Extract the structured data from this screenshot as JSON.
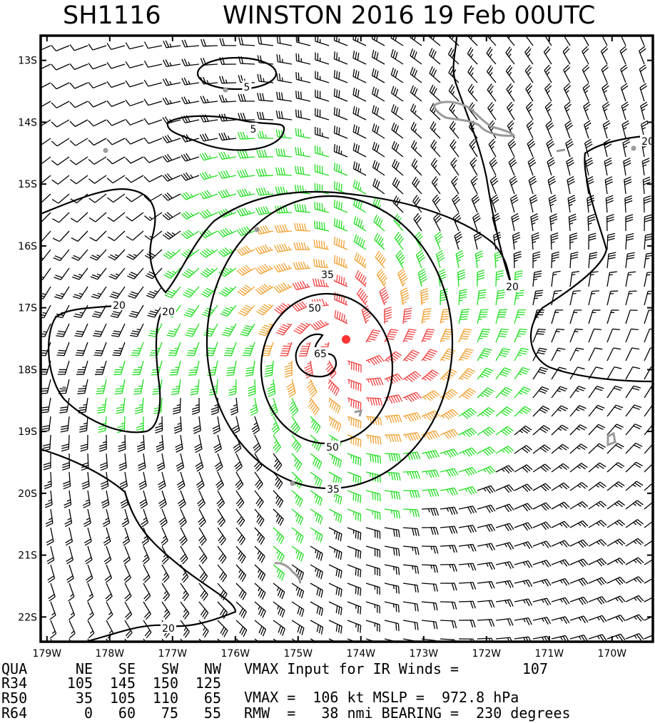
{
  "title": {
    "storm_id": "SH1116",
    "name_time": "WINSTON 2016 19 Feb 00UTC"
  },
  "chart_data": {
    "type": "wind-barb map",
    "x_tick_labels": [
      "179W",
      "178W",
      "177W",
      "176W",
      "175W",
      "174W",
      "173W",
      "172W",
      "171W",
      "170W"
    ],
    "y_tick_labels": [
      "13S",
      "14S",
      "15S",
      "16S",
      "17S",
      "18S",
      "19S",
      "20S",
      "21S",
      "22S"
    ],
    "xlim": [
      -179.1,
      -169.35
    ],
    "ylim": [
      -22.4,
      -12.6
    ],
    "center": {
      "lon": -174.2,
      "lat": -17.4
    },
    "contour_labels": [
      "5",
      "5",
      "20",
      "20",
      "20",
      "20",
      "20",
      "35",
      "35",
      "50",
      "50",
      "65"
    ],
    "barb_colors": {
      "lt34": "#000000",
      "34_49": "#22dd22",
      "50_63": "#f0a030",
      "ge64": "#f04040"
    },
    "center_color": "#ff3333",
    "island_color": "#999999"
  },
  "stats": {
    "header": [
      "QUA",
      "NE",
      "SE",
      "SW",
      "NW"
    ],
    "vmax_input_label": "VMAX Input for IR Winds =",
    "vmax_input_value": "107",
    "rows": [
      [
        "R34",
        "105",
        "145",
        "150",
        "125"
      ],
      [
        "R50",
        "35",
        "105",
        "110",
        "65"
      ],
      [
        "R64",
        "0",
        "60",
        "75",
        "55"
      ]
    ],
    "vmax_line": "VMAX =  106 kt MSLP =  972.8 hPa",
    "rmw_line": "RMW  =   38 nmi BEARING =  230 degrees"
  }
}
